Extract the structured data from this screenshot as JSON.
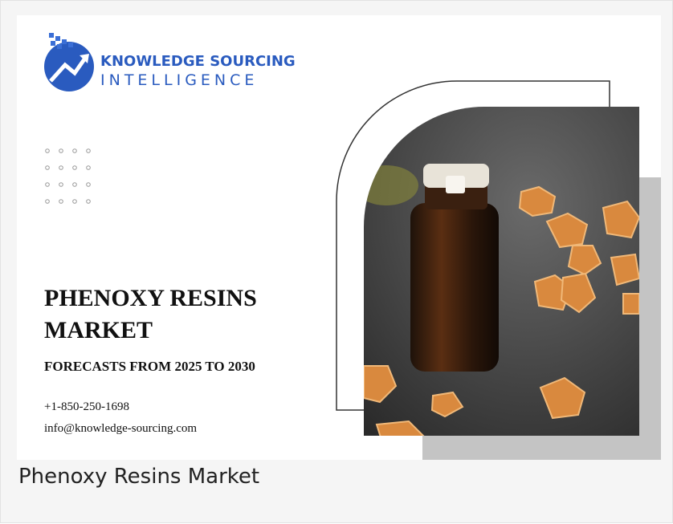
{
  "banner": {
    "logo": {
      "line1": "KNOWLEDGE SOURCING",
      "line2": "INTELLIGENCE"
    },
    "title_lines": [
      "PHENOXY RESINS",
      "MARKET"
    ],
    "subtitle": "FORECASTS FROM 2025 TO 2030",
    "phone": "+1-850-250-1698",
    "email": "info@knowledge-sourcing.com"
  },
  "caption": "Phenoxy Resins Market"
}
